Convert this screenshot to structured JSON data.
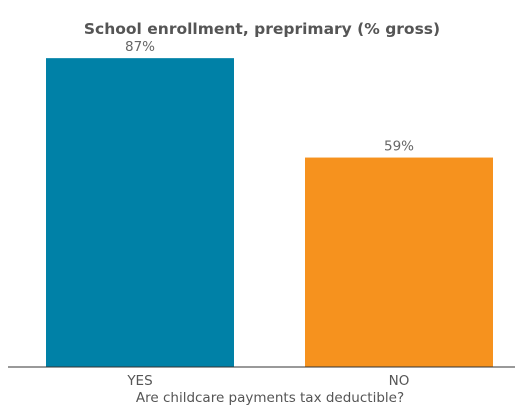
{
  "chart_data": {
    "type": "bar",
    "title": "School enrollment, preprimary (% gross)",
    "xlabel": "Are childcare payments tax deductible?",
    "ylabel": "",
    "categories": [
      "YES",
      "NO"
    ],
    "values": [
      87,
      59
    ],
    "value_labels": [
      "87%",
      "59%"
    ],
    "colors": [
      "#0081A7",
      "#F6921E"
    ],
    "ylim": [
      0,
      100
    ],
    "grid": false,
    "legend": "none"
  }
}
